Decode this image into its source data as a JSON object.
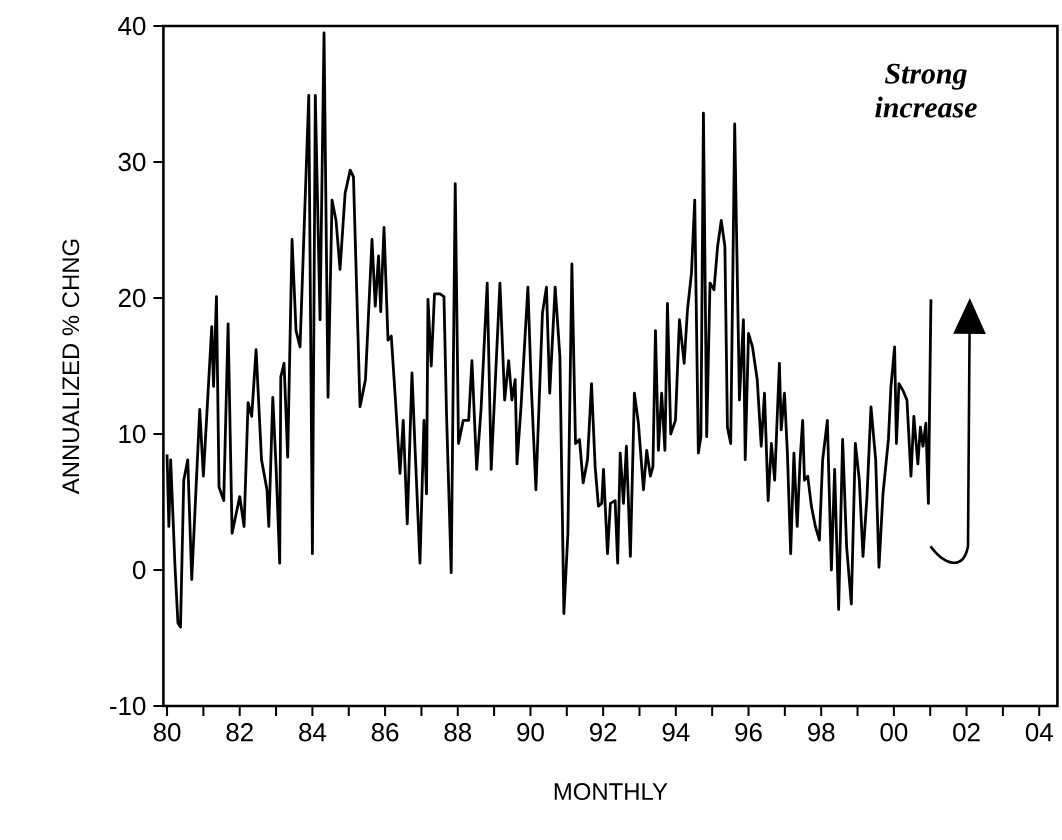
{
  "chart_data": {
    "type": "line",
    "xlabel": "MONTHLY",
    "ylabel": "ANNUALIZED % CHNG",
    "annotations": [
      "Strong increase"
    ],
    "xlim": [
      1979.9,
      2004.5
    ],
    "ylim": [
      -10,
      40
    ],
    "xticks": [
      {
        "value": 1980,
        "label": "80"
      },
      {
        "value": 1981,
        "label": null
      },
      {
        "value": 1982,
        "label": "82"
      },
      {
        "value": 1983,
        "label": null
      },
      {
        "value": 1984,
        "label": "84"
      },
      {
        "value": 1985,
        "label": null
      },
      {
        "value": 1986,
        "label": "86"
      },
      {
        "value": 1987,
        "label": null
      },
      {
        "value": 1988,
        "label": "88"
      },
      {
        "value": 1989,
        "label": null
      },
      {
        "value": 1990,
        "label": "90"
      },
      {
        "value": 1991,
        "label": null
      },
      {
        "value": 1992,
        "label": "92"
      },
      {
        "value": 1993,
        "label": null
      },
      {
        "value": 1994,
        "label": "94"
      },
      {
        "value": 1995,
        "label": null
      },
      {
        "value": 1996,
        "label": "96"
      },
      {
        "value": 1997,
        "label": null
      },
      {
        "value": 1998,
        "label": "98"
      },
      {
        "value": 1999,
        "label": null
      },
      {
        "value": 2000,
        "label": "00"
      },
      {
        "value": 2001,
        "label": null
      },
      {
        "value": 2002,
        "label": "02"
      },
      {
        "value": 2003,
        "label": null
      },
      {
        "value": 2004,
        "label": "04"
      }
    ],
    "yticks": [
      -10,
      0,
      10,
      20,
      30,
      40
    ],
    "line_style": "solid",
    "series": [
      {
        "color": "#000000",
        "x": [
          1980.0,
          1980.05,
          1980.1,
          1980.22,
          1980.3,
          1980.37,
          1980.46,
          1980.57,
          1980.68,
          1980.9,
          1981.0,
          1981.23,
          1981.28,
          1981.36,
          1981.43,
          1981.56,
          1981.68,
          1981.79,
          1982.0,
          1982.12,
          1982.23,
          1982.33,
          1982.45,
          1982.6,
          1982.75,
          1982.8,
          1982.91,
          1983.0,
          1983.1,
          1983.13,
          1983.22,
          1983.32,
          1983.44,
          1983.55,
          1983.66,
          1983.9,
          1984.0,
          1984.08,
          1984.21,
          1984.32,
          1984.43,
          1984.54,
          1984.65,
          1984.76,
          1984.9,
          1985.04,
          1985.13,
          1985.31,
          1985.46,
          1985.64,
          1985.73,
          1985.82,
          1985.88,
          1985.97,
          1986.08,
          1986.17,
          1986.28,
          1986.41,
          1986.5,
          1986.61,
          1986.74,
          1986.83,
          1986.96,
          1987.07,
          1987.14,
          1987.18,
          1987.27,
          1987.36,
          1987.51,
          1987.62,
          1987.69,
          1987.82,
          1987.93,
          1988.02,
          1988.15,
          1988.3,
          1988.39,
          1988.52,
          1988.64,
          1988.81,
          1988.92,
          1989.16,
          1989.29,
          1989.4,
          1989.49,
          1989.58,
          1989.63,
          1989.74,
          1989.93,
          1990.02,
          1990.15,
          1990.33,
          1990.44,
          1990.53,
          1990.68,
          1990.81,
          1990.92,
          1991.03,
          1991.14,
          1991.24,
          1991.35,
          1991.45,
          1991.57,
          1991.68,
          1991.78,
          1991.87,
          1991.96,
          1992.01,
          1992.12,
          1992.2,
          1992.33,
          1992.4,
          1992.47,
          1992.56,
          1992.64,
          1992.75,
          1992.86,
          1992.97,
          1993.11,
          1993.2,
          1993.3,
          1993.37,
          1993.44,
          1993.52,
          1993.61,
          1993.7,
          1993.77,
          1993.86,
          1993.99,
          1994.1,
          1994.23,
          1994.32,
          1994.43,
          1994.52,
          1994.62,
          1994.69,
          1994.76,
          1994.85,
          1994.94,
          1995.05,
          1995.15,
          1995.25,
          1995.35,
          1995.42,
          1995.51,
          1995.62,
          1995.75,
          1995.86,
          1995.91,
          1996.0,
          1996.11,
          1996.24,
          1996.35,
          1996.44,
          1996.54,
          1996.63,
          1996.72,
          1996.85,
          1996.9,
          1996.99,
          1997.07,
          1997.16,
          1997.25,
          1997.34,
          1997.42,
          1997.49,
          1997.54,
          1997.63,
          1997.73,
          1997.84,
          1997.95,
          1998.04,
          1998.17,
          1998.28,
          1998.37,
          1998.48,
          1998.59,
          1998.7,
          1998.83,
          1998.94,
          1999.05,
          1999.15,
          1999.26,
          1999.37,
          1999.5,
          1999.59,
          1999.7,
          1999.85,
          1999.92,
          2000.02,
          2000.07,
          2000.14,
          2000.25,
          2000.36,
          2000.47,
          2000.55,
          2000.66,
          2000.73,
          2000.8,
          2000.88,
          2000.95,
          2001.02
        ],
        "values": [
          8.5,
          3.2,
          8.1,
          0.2,
          -3.9,
          -4.2,
          6.6,
          8.1,
          -0.7,
          11.8,
          6.9,
          17.9,
          13.5,
          20.1,
          6.1,
          5.1,
          18.1,
          2.7,
          5.4,
          3.2,
          12.3,
          11.3,
          16.2,
          8.1,
          5.9,
          3.2,
          12.7,
          7.6,
          0.5,
          14.2,
          15.2,
          8.3,
          24.3,
          17.6,
          16.4,
          34.9,
          1.2,
          34.9,
          18.4,
          39.5,
          12.7,
          27.2,
          25.7,
          22.1,
          27.7,
          29.4,
          28.9,
          12,
          14,
          24.3,
          19.4,
          23.1,
          19,
          25.2,
          16.9,
          17.2,
          12.7,
          7.1,
          11,
          3.4,
          14.5,
          8.6,
          0.5,
          11,
          5.6,
          19.9,
          15,
          20.3,
          20.3,
          20.1,
          11.5,
          -0.2,
          28.4,
          9.3,
          11,
          11,
          15.4,
          7.4,
          11.8,
          21.1,
          7.4,
          21.1,
          12.5,
          15.4,
          12.5,
          14,
          7.8,
          12,
          20.8,
          13.7,
          5.9,
          18.9,
          20.8,
          13,
          20.8,
          15.7,
          -3.2,
          2.7,
          22.5,
          9.3,
          9.6,
          6.4,
          8.1,
          13.7,
          7.6,
          4.7,
          4.9,
          7.4,
          1.2,
          4.9,
          5.1,
          0.5,
          8.6,
          4.9,
          9.1,
          1,
          13,
          10.8,
          5.9,
          8.8,
          6.9,
          7.6,
          17.6,
          8.8,
          13,
          8.8,
          19.6,
          10,
          11,
          18.4,
          15.2,
          19.1,
          21.8,
          27.2,
          8.6,
          9.8,
          33.6,
          9.8,
          21.1,
          20.6,
          23.8,
          25.7,
          23.8,
          10.5,
          9.3,
          32.8,
          12.5,
          18.4,
          8.1,
          17.4,
          16.4,
          14,
          9.1,
          13,
          5.1,
          9.3,
          6.6,
          15.2,
          10.3,
          13,
          8.6,
          1.2,
          8.6,
          3.2,
          8.1,
          11,
          6.6,
          6.9,
          4.7,
          3.2,
          2.2,
          8.1,
          11,
          0,
          7.4,
          -2.9,
          9.6,
          1.7,
          -2.5,
          9.3,
          6.6,
          1,
          5.4,
          12,
          8.1,
          0.2,
          5.6,
          9.6,
          13.5,
          16.4,
          9.3,
          13.7,
          13.2,
          12.5,
          6.9,
          11.3,
          7.8,
          10.5,
          9.1,
          10.8,
          4.9,
          19.9
        ]
      }
    ]
  }
}
